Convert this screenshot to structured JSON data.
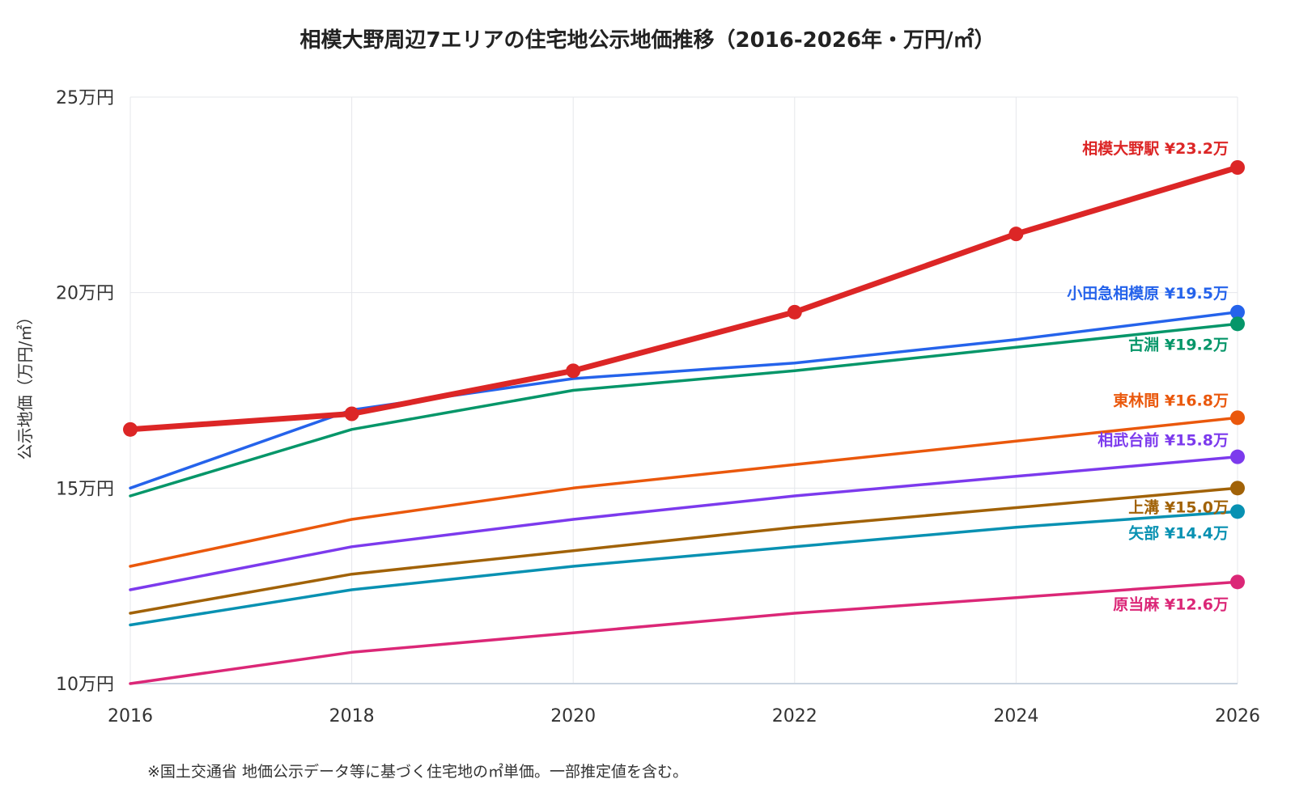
{
  "chart_data": {
    "type": "line",
    "title": "相模大野周辺7エリアの住宅地公示地価推移（2016-2026年・万円/㎡）",
    "ylabel": "公示地価（万円/㎡）",
    "xlabel": "",
    "x": [
      2016,
      2018,
      2020,
      2022,
      2024,
      2026
    ],
    "x_tick_labels": [
      "2016",
      "2018",
      "2020",
      "2022",
      "2024",
      "2026"
    ],
    "ylim": [
      10,
      25
    ],
    "y_ticks": [
      10,
      15,
      20,
      25
    ],
    "y_tick_labels": [
      "10万円",
      "15万円",
      "20万円",
      "25万円"
    ],
    "grid": true,
    "legend": "end-of-line labels",
    "note": "※国土交通省 地価公示データ等に基づく住宅地の㎡単価。一部推定値を含む。",
    "series": [
      {
        "name": "相模大野駅",
        "end_label": "相模大野駅 ¥23.2万",
        "color": "#dc2626",
        "emphasis": true,
        "values": [
          16.5,
          16.9,
          18.0,
          19.5,
          21.5,
          23.2
        ]
      },
      {
        "name": "小田急相模原",
        "end_label": "小田急相模原 ¥19.5万",
        "color": "#2563eb",
        "values": [
          15.0,
          17.0,
          17.8,
          18.2,
          18.8,
          19.5
        ]
      },
      {
        "name": "古淵",
        "end_label": "古淵 ¥19.2万",
        "color": "#059669",
        "values": [
          14.8,
          16.5,
          17.5,
          18.0,
          18.6,
          19.2
        ]
      },
      {
        "name": "東林間",
        "end_label": "東林間 ¥16.8万",
        "color": "#ea580c",
        "values": [
          13.0,
          14.2,
          15.0,
          15.6,
          16.2,
          16.8
        ]
      },
      {
        "name": "相武台前",
        "end_label": "相武台前 ¥15.8万",
        "color": "#7c3aed",
        "values": [
          12.4,
          13.5,
          14.2,
          14.8,
          15.3,
          15.8
        ]
      },
      {
        "name": "上溝",
        "end_label": "上溝 ¥15.0万",
        "color": "#a16207",
        "values": [
          11.8,
          12.8,
          13.4,
          14.0,
          14.5,
          15.0
        ]
      },
      {
        "name": "矢部",
        "end_label": "矢部 ¥14.4万",
        "color": "#0891b2",
        "values": [
          11.5,
          12.4,
          13.0,
          13.5,
          14.0,
          14.4
        ]
      },
      {
        "name": "原当麻",
        "end_label": "原当麻 ¥12.6万",
        "color": "#db2777",
        "values": [
          10.0,
          10.8,
          11.3,
          11.8,
          12.2,
          12.6
        ]
      }
    ]
  }
}
